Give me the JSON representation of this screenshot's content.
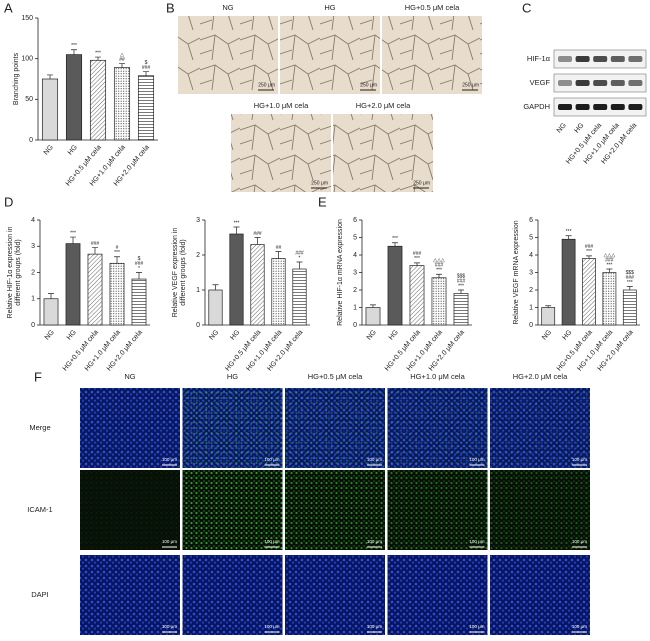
{
  "panel_letters": [
    "A",
    "B",
    "C",
    "D",
    "E",
    "F"
  ],
  "tube_formation": {
    "labels": [
      "NG",
      "HG",
      "HG+0.5 μM cela",
      "HG+1.0 μM cela",
      "HG+2.0 μM cela"
    ],
    "scale_bar": "250 μm"
  },
  "western_blot": {
    "proteins": [
      "HIF-1α",
      "VEGF",
      "GAPDH"
    ],
    "lanes": [
      "NG",
      "HG",
      "HG+0.5 μM cela",
      "HG+1.0 μM cela",
      "HG+2.0 μM cela"
    ]
  },
  "immunofluorescence": {
    "columns": [
      "NG",
      "HG",
      "HG+0.5 μM cela",
      "HG+1.0 μM cela",
      "HG+2.0 μM cela"
    ],
    "rows": [
      "Merge",
      "ICAM-1",
      "DAPI"
    ],
    "scale_bar": "100 μm"
  },
  "chart_data": [
    {
      "type": "bar",
      "ylabel": [
        "Branching points"
      ],
      "categories": [
        "NG",
        "HG",
        "HG+0.5 μM cela",
        "HG+1.0 μM cela",
        "HG+2.0 μM cela"
      ],
      "values": [
        75,
        105,
        98,
        89,
        79
      ],
      "errors": [
        5,
        6,
        4,
        5,
        5
      ],
      "annotations": [
        [],
        [
          "***"
        ],
        [
          "***"
        ],
        [
          "△",
          "##"
        ],
        [
          "$",
          "###"
        ]
      ],
      "fills": [
        "#d9d9d9",
        "#5a5a5a",
        "hatch",
        "dots",
        "stripes"
      ],
      "ylim": [
        0,
        150
      ],
      "yticks": [
        0,
        50,
        100,
        150
      ]
    },
    {
      "type": "bar",
      "ylabel": [
        "Relative HIF-1α expression in",
        "different groups (fold)"
      ],
      "categories": [
        "NG",
        "HG",
        "HG+0.5 μM cela",
        "HG+1.0 μM cela",
        "HG+2.0 μM cela"
      ],
      "values": [
        1.0,
        3.1,
        2.7,
        2.35,
        1.75
      ],
      "errors": [
        0.2,
        0.25,
        0.25,
        0.25,
        0.25
      ],
      "annotations": [
        [],
        [
          "***"
        ],
        [
          "###"
        ],
        [
          "#",
          "***"
        ],
        [
          "$",
          "###",
          "*"
        ]
      ],
      "fills": [
        "#d9d9d9",
        "#5a5a5a",
        "hatch",
        "dots",
        "stripes"
      ],
      "ylim": [
        0,
        4
      ],
      "yticks": [
        0,
        1,
        2,
        3,
        4
      ]
    },
    {
      "type": "bar",
      "ylabel": [
        "Relative VEGF expression in",
        "different groups (fold)"
      ],
      "categories": [
        "NG",
        "HG",
        "HG+0.5 μM cela",
        "HG+1.0 μM cela",
        "HG+2.0 μM cela"
      ],
      "values": [
        1.0,
        2.6,
        2.3,
        1.9,
        1.6
      ],
      "errors": [
        0.15,
        0.2,
        0.2,
        0.2,
        0.2
      ],
      "annotations": [
        [],
        [
          "***"
        ],
        [
          "###"
        ],
        [
          "##"
        ],
        [
          "###",
          "*"
        ]
      ],
      "fills": [
        "#d9d9d9",
        "#5a5a5a",
        "hatch",
        "dots",
        "stripes"
      ],
      "ylim": [
        0,
        3
      ],
      "yticks": [
        0,
        1,
        2,
        3
      ]
    },
    {
      "type": "bar",
      "ylabel": [
        "Relative HIF-1α mRNA expression"
      ],
      "categories": [
        "NG",
        "HG",
        "HG+0.5 μM cela",
        "HG+1.0 μM cela",
        "HG+2.0 μM cela"
      ],
      "values": [
        1.0,
        4.5,
        3.4,
        2.7,
        1.8
      ],
      "errors": [
        0.15,
        0.2,
        0.15,
        0.2,
        0.2
      ],
      "annotations": [
        [],
        [
          "***"
        ],
        [
          "###",
          "***"
        ],
        [
          "△△△",
          "###",
          "***"
        ],
        [
          "$$$",
          "###",
          "***"
        ]
      ],
      "fills": [
        "#d9d9d9",
        "#5a5a5a",
        "hatch",
        "dots",
        "stripes"
      ],
      "ylim": [
        0,
        6
      ],
      "yticks": [
        0,
        1,
        2,
        3,
        4,
        5,
        6
      ]
    },
    {
      "type": "bar",
      "ylabel": [
        "Relative VEGF mRNA expression"
      ],
      "categories": [
        "NG",
        "HG",
        "HG+0.5 μM cela",
        "HG+1.0 μM cela",
        "HG+2.0 μM cela"
      ],
      "values": [
        1.0,
        4.9,
        3.8,
        3.0,
        2.0
      ],
      "errors": [
        0.1,
        0.2,
        0.15,
        0.2,
        0.2
      ],
      "annotations": [
        [],
        [
          "***"
        ],
        [
          "###",
          "***"
        ],
        [
          "△△△",
          "###",
          "***"
        ],
        [
          "$$$",
          "###",
          "***"
        ]
      ],
      "fills": [
        "#d9d9d9",
        "#5a5a5a",
        "hatch",
        "dots",
        "stripes"
      ],
      "ylim": [
        0,
        6
      ],
      "yticks": [
        0,
        1,
        2,
        3,
        4,
        5,
        6
      ]
    }
  ]
}
